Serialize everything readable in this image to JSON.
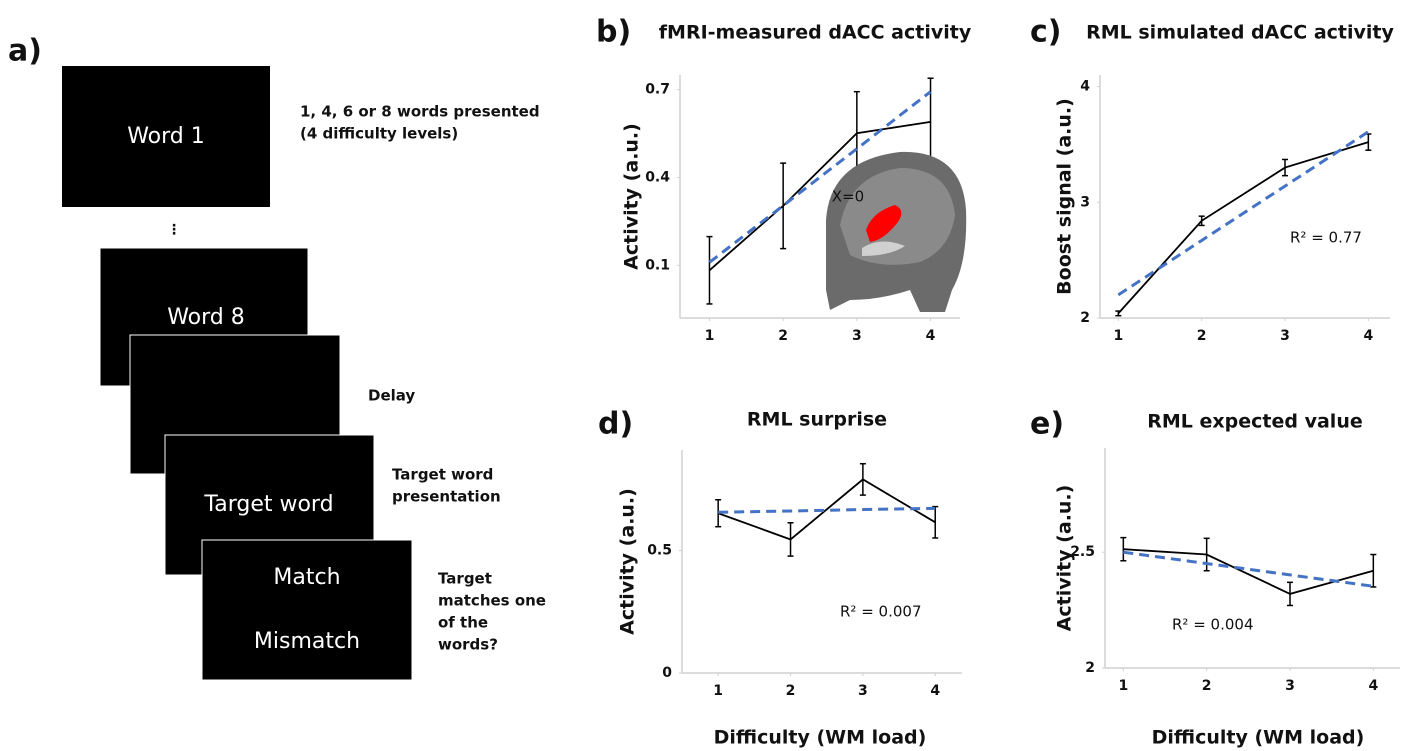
{
  "diagram": {
    "label": "a)",
    "screens": [
      "Word 1",
      "Word 8",
      "Target word",
      "Match",
      "Mismatch"
    ],
    "ellipsis": "⋮",
    "notes": [
      [
        "1, 4, 6 or 8 words presented",
        "(4 difficulty levels)"
      ],
      [
        "Delay"
      ],
      [
        "Target word",
        "presentation"
      ],
      [
        "Target",
        "matches one",
        "of the",
        "words?"
      ]
    ]
  },
  "chart_data": [
    {
      "type": "line",
      "panel": "b)",
      "title": "fMRI-measured dACC activity",
      "ylabel": "Activity (a.u.)",
      "x": [
        1,
        2,
        3,
        4
      ],
      "xlim": [
        0.6,
        4.4
      ],
      "xticks": [
        1,
        2,
        3,
        4
      ],
      "ylim": [
        -0.08,
        0.75
      ],
      "yticks": [
        0.1,
        0.4,
        0.7
      ],
      "series": [
        {
          "color": "#000000",
          "values": [
            0.083,
            0.303,
            0.551,
            0.59
          ],
          "errors": [
            0.115,
            0.146,
            0.142,
            0.149
          ]
        },
        {
          "color": "#4472c4",
          "dashed": true,
          "values": [
            0.11,
            0.304,
            0.498,
            0.693
          ]
        }
      ],
      "annotation": "X=0"
    },
    {
      "type": "line",
      "panel": "c)",
      "title": "RML simulated dACC activity",
      "ylabel": "Boost signal (a.u.)",
      "x": [
        1,
        2,
        3,
        4
      ],
      "xlim": [
        0.78,
        4.26
      ],
      "xticks": [
        1,
        2,
        3,
        4
      ],
      "ylim": [
        2,
        4.1
      ],
      "yticks": [
        2,
        3,
        4
      ],
      "series": [
        {
          "color": "#000000",
          "values": [
            2.04,
            2.84,
            3.3,
            3.52
          ],
          "errors": [
            0.02,
            0.04,
            0.07,
            0.07
          ]
        },
        {
          "color": "#4472c4",
          "dashed": true,
          "values": [
            2.2,
            2.67,
            3.14,
            3.61
          ]
        }
      ],
      "annotation": "R² = 0.77"
    },
    {
      "type": "line",
      "panel": "d)",
      "title": "RML surprise",
      "ylabel": "Activity (a.u.)",
      "xlabel": "Difficulty (WM load)",
      "x": [
        1,
        2,
        3,
        4
      ],
      "xlim": [
        0.5,
        4.37
      ],
      "xticks": [
        1,
        2,
        3,
        4
      ],
      "ylim": [
        0,
        0.91
      ],
      "yticks": [
        0,
        0.5
      ],
      "series": [
        {
          "color": "#000000",
          "values": [
            0.652,
            0.545,
            0.79,
            0.615
          ],
          "errors": [
            0.055,
            0.068,
            0.064,
            0.064
          ]
        },
        {
          "color": "#4472c4",
          "dashed": true,
          "values": [
            0.656,
            0.661,
            0.667,
            0.672
          ]
        }
      ],
      "annotation": "R² = 0.007"
    },
    {
      "type": "line",
      "panel": "e)",
      "title": "RML expected value",
      "ylabel": "Activity (a.u.)",
      "xlabel": "Difficulty (WM load)",
      "x": [
        1,
        2,
        3,
        4
      ],
      "xlim": [
        0.78,
        4.32
      ],
      "xticks": [
        1,
        2,
        3,
        4
      ],
      "ylim": [
        2,
        2.95
      ],
      "yticks": [
        2,
        2.5
      ],
      "series": [
        {
          "color": "#000000",
          "values": [
            2.513,
            2.49,
            2.32,
            2.42
          ],
          "errors": [
            0.05,
            0.07,
            0.05,
            0.07
          ]
        },
        {
          "color": "#4472c4",
          "dashed": true,
          "values": [
            2.5,
            2.451,
            2.402,
            2.353
          ]
        }
      ],
      "annotation": "R² = 0.004"
    }
  ]
}
